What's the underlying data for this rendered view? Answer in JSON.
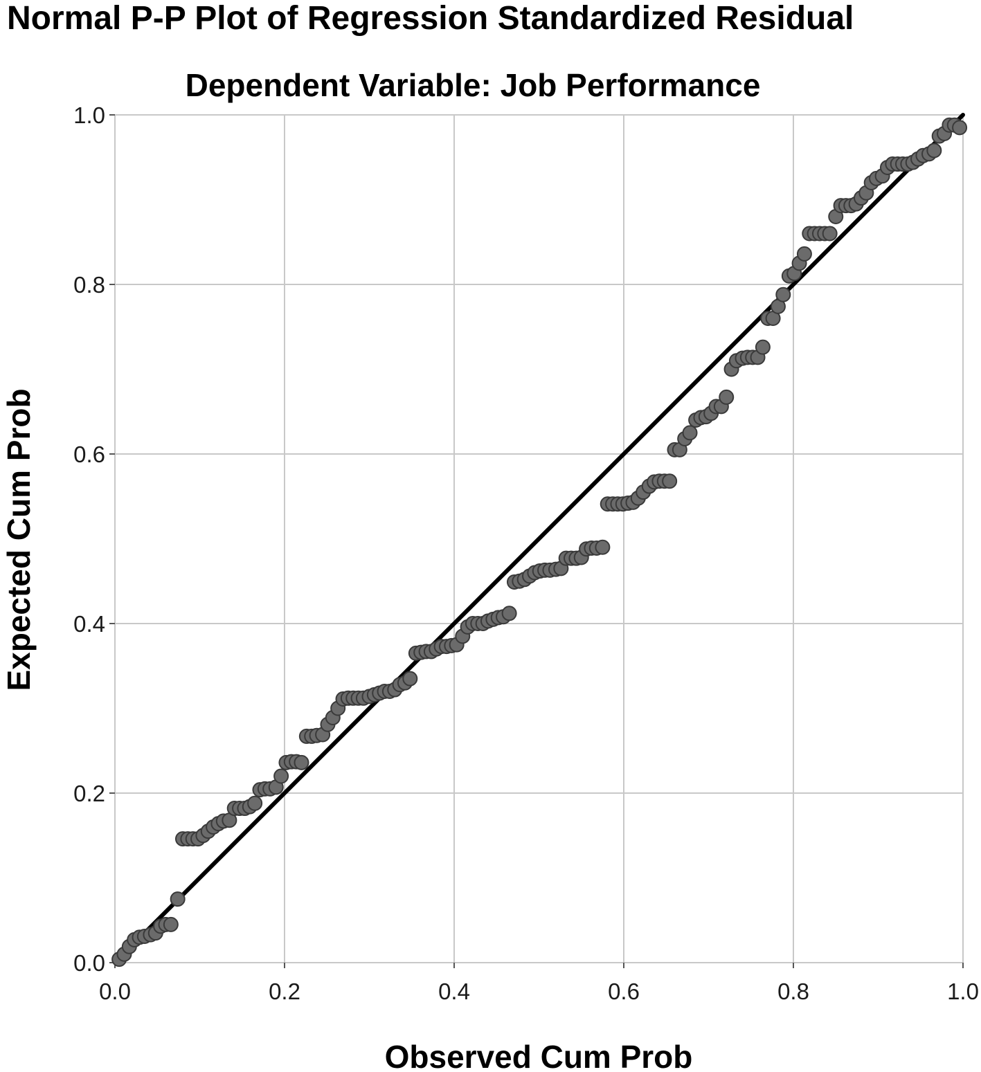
{
  "chart_data": {
    "type": "scatter",
    "title": "Normal P-P Plot of Regression Standardized Residual",
    "subtitle": "Dependent Variable: Job Performance",
    "xlabel": "Observed Cum Prob",
    "ylabel": "Expected Cum Prob",
    "xlim": [
      0,
      1
    ],
    "ylim": [
      0,
      1
    ],
    "xticks": [
      "0.0",
      "0.2",
      "0.4",
      "0.6",
      "0.8",
      "1.0"
    ],
    "yticks": [
      "0.0",
      "0.2",
      "0.4",
      "0.6",
      "0.8",
      "1.0"
    ],
    "grid": true,
    "reference_line": [
      [
        0,
        0
      ],
      [
        1,
        1
      ]
    ],
    "colors": {
      "point_fill": "#6b6b6b",
      "point_stroke": "#3a3a3a",
      "line": "#000000",
      "grid": "#c8c8c8",
      "frame": "#c8c8c8"
    },
    "points": [
      [
        0.005,
        0.004
      ],
      [
        0.011,
        0.01
      ],
      [
        0.017,
        0.019
      ],
      [
        0.023,
        0.027
      ],
      [
        0.029,
        0.03
      ],
      [
        0.035,
        0.031
      ],
      [
        0.042,
        0.033
      ],
      [
        0.048,
        0.035
      ],
      [
        0.054,
        0.043
      ],
      [
        0.06,
        0.045
      ],
      [
        0.066,
        0.045
      ],
      [
        0.074,
        0.075
      ],
      [
        0.08,
        0.146
      ],
      [
        0.086,
        0.146
      ],
      [
        0.092,
        0.146
      ],
      [
        0.098,
        0.146
      ],
      [
        0.104,
        0.15
      ],
      [
        0.11,
        0.155
      ],
      [
        0.116,
        0.16
      ],
      [
        0.122,
        0.164
      ],
      [
        0.128,
        0.167
      ],
      [
        0.135,
        0.168
      ],
      [
        0.141,
        0.182
      ],
      [
        0.147,
        0.182
      ],
      [
        0.153,
        0.182
      ],
      [
        0.159,
        0.184
      ],
      [
        0.165,
        0.188
      ],
      [
        0.171,
        0.204
      ],
      [
        0.177,
        0.205
      ],
      [
        0.183,
        0.205
      ],
      [
        0.19,
        0.207
      ],
      [
        0.196,
        0.22
      ],
      [
        0.202,
        0.236
      ],
      [
        0.208,
        0.237
      ],
      [
        0.214,
        0.237
      ],
      [
        0.22,
        0.236
      ],
      [
        0.226,
        0.267
      ],
      [
        0.232,
        0.267
      ],
      [
        0.238,
        0.268
      ],
      [
        0.245,
        0.269
      ],
      [
        0.251,
        0.281
      ],
      [
        0.257,
        0.289
      ],
      [
        0.263,
        0.3
      ],
      [
        0.269,
        0.311
      ],
      [
        0.275,
        0.312
      ],
      [
        0.281,
        0.312
      ],
      [
        0.287,
        0.312
      ],
      [
        0.293,
        0.312
      ],
      [
        0.3,
        0.314
      ],
      [
        0.306,
        0.316
      ],
      [
        0.312,
        0.318
      ],
      [
        0.318,
        0.32
      ],
      [
        0.324,
        0.32
      ],
      [
        0.33,
        0.322
      ],
      [
        0.336,
        0.328
      ],
      [
        0.342,
        0.33
      ],
      [
        0.348,
        0.335
      ],
      [
        0.355,
        0.365
      ],
      [
        0.361,
        0.366
      ],
      [
        0.367,
        0.367
      ],
      [
        0.373,
        0.367
      ],
      [
        0.379,
        0.37
      ],
      [
        0.385,
        0.373
      ],
      [
        0.391,
        0.373
      ],
      [
        0.397,
        0.374
      ],
      [
        0.403,
        0.375
      ],
      [
        0.41,
        0.385
      ],
      [
        0.416,
        0.396
      ],
      [
        0.422,
        0.4
      ],
      [
        0.428,
        0.4
      ],
      [
        0.434,
        0.4
      ],
      [
        0.44,
        0.403
      ],
      [
        0.446,
        0.405
      ],
      [
        0.452,
        0.407
      ],
      [
        0.458,
        0.408
      ],
      [
        0.465,
        0.412
      ],
      [
        0.471,
        0.449
      ],
      [
        0.477,
        0.45
      ],
      [
        0.483,
        0.452
      ],
      [
        0.489,
        0.456
      ],
      [
        0.495,
        0.46
      ],
      [
        0.501,
        0.462
      ],
      [
        0.507,
        0.463
      ],
      [
        0.513,
        0.463
      ],
      [
        0.52,
        0.464
      ],
      [
        0.526,
        0.465
      ],
      [
        0.532,
        0.477
      ],
      [
        0.538,
        0.477
      ],
      [
        0.544,
        0.477
      ],
      [
        0.55,
        0.478
      ],
      [
        0.556,
        0.488
      ],
      [
        0.562,
        0.489
      ],
      [
        0.568,
        0.489
      ],
      [
        0.575,
        0.49
      ],
      [
        0.581,
        0.541
      ],
      [
        0.587,
        0.541
      ],
      [
        0.593,
        0.541
      ],
      [
        0.599,
        0.541
      ],
      [
        0.605,
        0.542
      ],
      [
        0.611,
        0.543
      ],
      [
        0.617,
        0.548
      ],
      [
        0.623,
        0.555
      ],
      [
        0.63,
        0.562
      ],
      [
        0.636,
        0.567
      ],
      [
        0.642,
        0.568
      ],
      [
        0.648,
        0.568
      ],
      [
        0.654,
        0.568
      ],
      [
        0.66,
        0.605
      ],
      [
        0.666,
        0.605
      ],
      [
        0.672,
        0.618
      ],
      [
        0.678,
        0.625
      ],
      [
        0.685,
        0.64
      ],
      [
        0.691,
        0.643
      ],
      [
        0.697,
        0.644
      ],
      [
        0.703,
        0.648
      ],
      [
        0.709,
        0.656
      ],
      [
        0.715,
        0.656
      ],
      [
        0.721,
        0.667
      ],
      [
        0.727,
        0.7
      ],
      [
        0.733,
        0.71
      ],
      [
        0.74,
        0.713
      ],
      [
        0.746,
        0.714
      ],
      [
        0.752,
        0.714
      ],
      [
        0.758,
        0.714
      ],
      [
        0.764,
        0.726
      ],
      [
        0.77,
        0.76
      ],
      [
        0.776,
        0.76
      ],
      [
        0.782,
        0.774
      ],
      [
        0.788,
        0.788
      ],
      [
        0.795,
        0.81
      ],
      [
        0.801,
        0.813
      ],
      [
        0.807,
        0.825
      ],
      [
        0.813,
        0.836
      ],
      [
        0.819,
        0.86
      ],
      [
        0.825,
        0.86
      ],
      [
        0.831,
        0.86
      ],
      [
        0.837,
        0.86
      ],
      [
        0.843,
        0.86
      ],
      [
        0.85,
        0.88
      ],
      [
        0.856,
        0.893
      ],
      [
        0.862,
        0.893
      ],
      [
        0.868,
        0.893
      ],
      [
        0.874,
        0.895
      ],
      [
        0.88,
        0.902
      ],
      [
        0.886,
        0.908
      ],
      [
        0.892,
        0.92
      ],
      [
        0.898,
        0.925
      ],
      [
        0.905,
        0.928
      ],
      [
        0.911,
        0.938
      ],
      [
        0.917,
        0.942
      ],
      [
        0.923,
        0.942
      ],
      [
        0.929,
        0.942
      ],
      [
        0.935,
        0.942
      ],
      [
        0.941,
        0.944
      ],
      [
        0.947,
        0.948
      ],
      [
        0.953,
        0.952
      ],
      [
        0.96,
        0.954
      ],
      [
        0.966,
        0.958
      ],
      [
        0.972,
        0.975
      ],
      [
        0.978,
        0.978
      ],
      [
        0.984,
        0.988
      ],
      [
        0.99,
        0.988
      ],
      [
        0.996,
        0.985
      ]
    ]
  }
}
